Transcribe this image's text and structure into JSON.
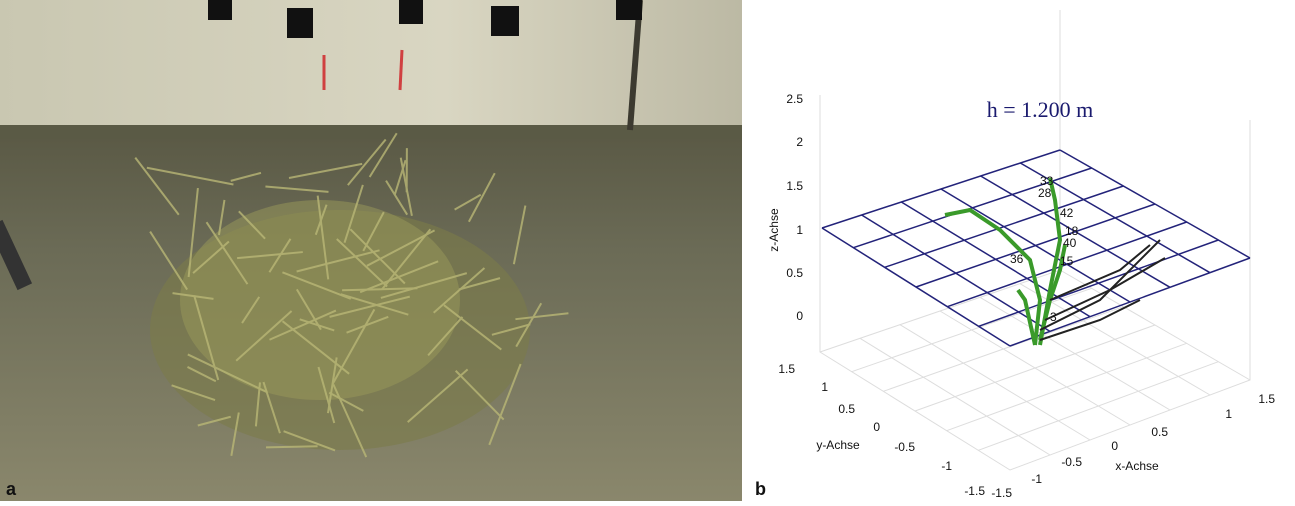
{
  "panels": [
    {
      "label": "a"
    },
    {
      "label": "b",
      "annotation": "h = 1.200 m",
      "z_axis": {
        "label": "z-Achse",
        "ticks": [
          "2.5",
          "2",
          "1.5",
          "1",
          "0.5",
          "0"
        ]
      },
      "y_axis": {
        "label": "y-Achse",
        "ticks": [
          "1.5",
          "1",
          "0.5",
          "0",
          "-0.5",
          "-1",
          "-1.5"
        ]
      },
      "x_axis": {
        "label": "x-Achse",
        "ticks": [
          "-1.5",
          "-1",
          "-0.5",
          "0",
          "0.5",
          "1",
          "1.5"
        ]
      },
      "point_labels": [
        "33",
        "28",
        "42",
        "18",
        "40",
        "36",
        "15",
        "3"
      ]
    }
  ]
}
